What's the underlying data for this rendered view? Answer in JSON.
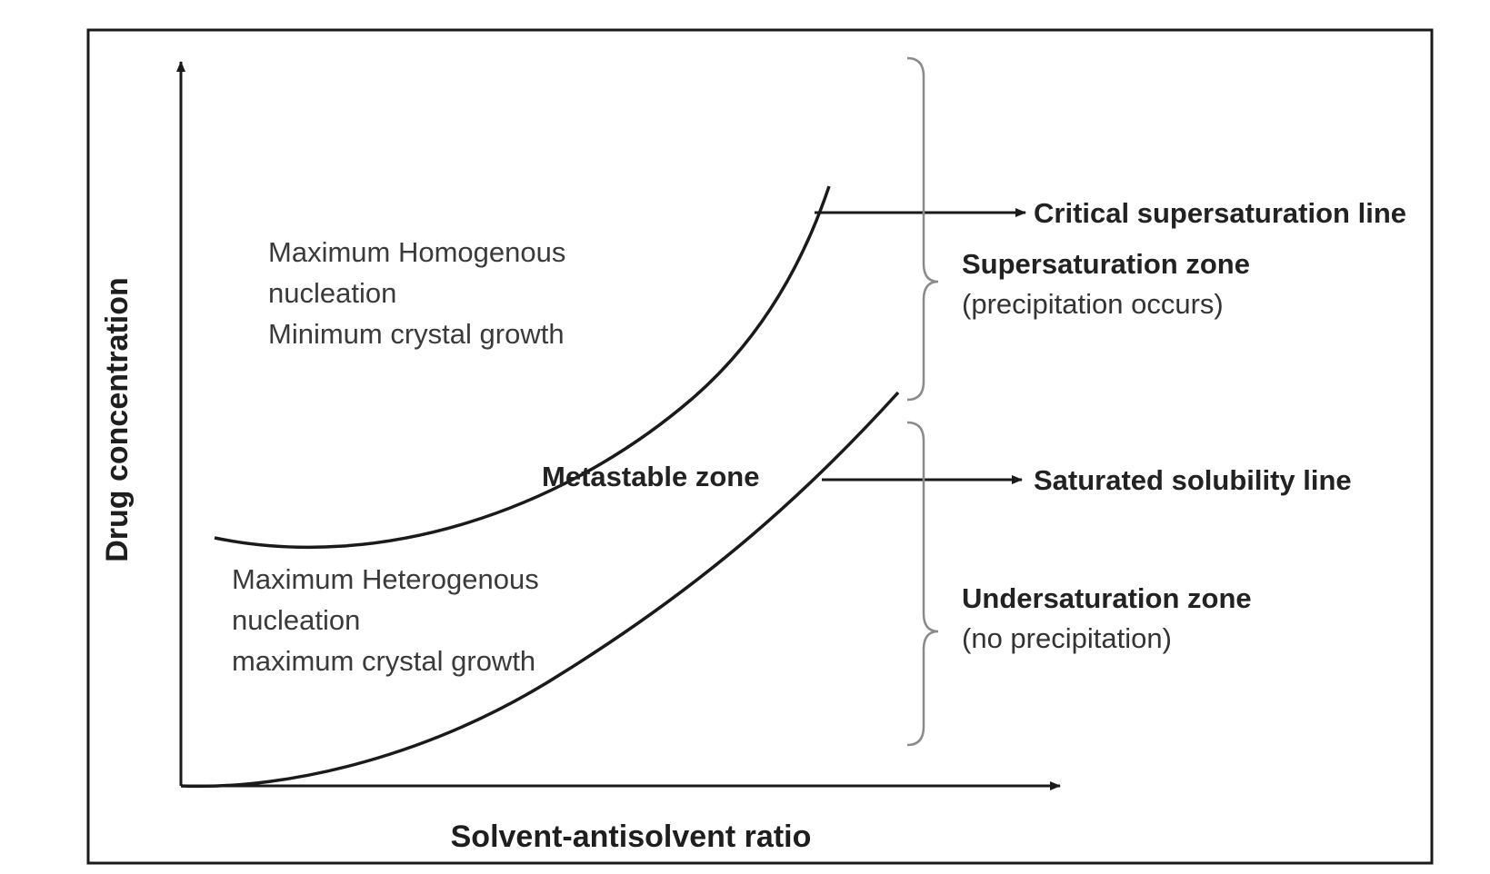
{
  "axes": {
    "y_label": "Drug concentration",
    "x_label": "Solvent-antisolvent ratio"
  },
  "curves": {
    "critical_line_label": "Critical supersaturation line",
    "solubility_line_label": "Saturated solubility line"
  },
  "regions": {
    "upper": [
      "Maximum Homogenous",
      "nucleation",
      "Minimum crystal growth"
    ],
    "middle": "Metastable zone",
    "lower": [
      "Maximum Heterogenous",
      "nucleation",
      "maximum crystal growth"
    ]
  },
  "zones": {
    "supersaturation": {
      "title": "Supersaturation zone",
      "note": "(precipitation occurs)"
    },
    "undersaturation": {
      "title": "Undersaturation zone",
      "note": "(no precipitation)"
    }
  },
  "colors": {
    "line": "#1a1a1a",
    "bracket": "#8a8a8a",
    "frame": "#1a1a1a"
  }
}
